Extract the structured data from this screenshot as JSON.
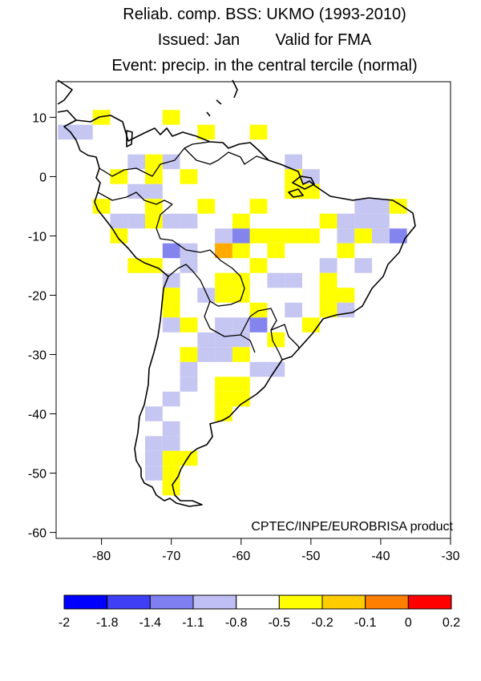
{
  "title": {
    "line1": "Reliab. comp. BSS: UKMO (1993-2010)",
    "line2": "Issued: Jan        Valid for FMA",
    "line3": "Event: precip. in the central tercile (normal)"
  },
  "credit": "CPTEC/INPE/EUROBRISA product",
  "axes": {
    "x_ticks": [
      "-80",
      "-70",
      "-60",
      "-50",
      "-40",
      "-30"
    ],
    "y_ticks": [
      "10",
      "0",
      "-10",
      "-20",
      "-30",
      "-40",
      "-50",
      "-60"
    ],
    "xlim": [
      -86.5,
      -30
    ],
    "ylim": [
      -61,
      16
    ]
  },
  "colorbar": {
    "tick_labels": [
      "-2",
      "-1.8",
      "-1.4",
      "-1.1",
      "-0.8",
      "-0.5",
      "-0.2",
      "-0.1",
      "0",
      "0.2"
    ],
    "colors": [
      "#0000ff",
      "#3f3ff5",
      "#7f7ff2",
      "#bfbff5",
      "#ffffff",
      "#ffff00",
      "#ffcc00",
      "#ff8000",
      "#ff0000"
    ]
  },
  "cell_colors": {
    "b1": "#c6c6f2",
    "b2": "#8484ee",
    "y": "#ffff00",
    "o": "#ffaa00"
  },
  "map_data": {
    "cell_size_deg": 2.5,
    "cells": [
      [
        "y",
        -80,
        10
      ],
      [
        "b1",
        -82.5,
        7.5
      ],
      [
        "b1",
        -85,
        7.5
      ],
      [
        "y",
        -70,
        10
      ],
      [
        "y",
        -57.5,
        7.5
      ],
      [
        "y",
        -65,
        7.5
      ],
      [
        "b1",
        -70,
        2.5
      ],
      [
        "b1",
        -75,
        2.5
      ],
      [
        "y",
        -72.5,
        2.5
      ],
      [
        "y",
        -72.5,
        0
      ],
      [
        "y",
        -77.5,
        0
      ],
      [
        "y",
        -67.5,
        0
      ],
      [
        "b1",
        -52.5,
        2.5
      ],
      [
        "y",
        -52.5,
        0
      ],
      [
        "b1",
        -50,
        0
      ],
      [
        "y",
        -50,
        -2.5
      ],
      [
        "y",
        -52.5,
        -2.5
      ],
      [
        "b1",
        -72.5,
        -2.5
      ],
      [
        "b1",
        -75,
        -2.5
      ],
      [
        "y",
        -80,
        -5
      ],
      [
        "y",
        -72.5,
        -5
      ],
      [
        "y",
        -65,
        -5
      ],
      [
        "y",
        -57.5,
        -5
      ],
      [
        "b1",
        -40,
        -5
      ],
      [
        "y",
        -37.5,
        -5
      ],
      [
        "b1",
        -42.5,
        -5
      ],
      [
        "b1",
        -77.5,
        -7.5
      ],
      [
        "b1",
        -75,
        -7.5
      ],
      [
        "y",
        -72.5,
        -7.5
      ],
      [
        "b1",
        -67.5,
        -7.5
      ],
      [
        "b1",
        -70,
        -7.5
      ],
      [
        "y",
        -60,
        -7.5
      ],
      [
        "y",
        -47.5,
        -7.5
      ],
      [
        "b1",
        -45,
        -7.5
      ],
      [
        "b1",
        -42.5,
        -7.5
      ],
      [
        "b1",
        -40,
        -7.5
      ],
      [
        "y",
        -77.5,
        -10
      ],
      [
        "b2",
        -60,
        -10
      ],
      [
        "y",
        -55,
        -10
      ],
      [
        "y",
        -52.5,
        -10
      ],
      [
        "y",
        -50,
        -10
      ],
      [
        "y",
        -57.5,
        -10
      ],
      [
        "b1",
        -62.5,
        -10
      ],
      [
        "b1",
        -45,
        -10
      ],
      [
        "y",
        -42.5,
        -10
      ],
      [
        "b2",
        -37.5,
        -10
      ],
      [
        "b1",
        -40,
        -10
      ],
      [
        "b2",
        -70,
        -12.5
      ],
      [
        "b1",
        -67.5,
        -12.5
      ],
      [
        "o",
        -62.5,
        -12.5
      ],
      [
        "y",
        -60,
        -12.5
      ],
      [
        "y",
        -55,
        -12.5
      ],
      [
        "y",
        -45,
        -12.5
      ],
      [
        "y",
        -75,
        -15
      ],
      [
        "y",
        -72.5,
        -15
      ],
      [
        "b1",
        -67.5,
        -15
      ],
      [
        "y",
        -57.5,
        -15
      ],
      [
        "b1",
        -47.5,
        -15
      ],
      [
        "b1",
        -42.5,
        -15
      ],
      [
        "y",
        -62.5,
        -17.5
      ],
      [
        "y",
        -60,
        -17.5
      ],
      [
        "b1",
        -55,
        -17.5
      ],
      [
        "b1",
        -52.5,
        -17.5
      ],
      [
        "y",
        -47.5,
        -17.5
      ],
      [
        "b1",
        -70,
        -17.5
      ],
      [
        "y",
        -70,
        -20
      ],
      [
        "y",
        -62.5,
        -20
      ],
      [
        "y",
        -60,
        -20
      ],
      [
        "b1",
        -65,
        -20
      ],
      [
        "y",
        -47.5,
        -20
      ],
      [
        "y",
        -45,
        -20
      ],
      [
        "y",
        -70,
        -22.5
      ],
      [
        "y",
        -57.5,
        -22.5
      ],
      [
        "b1",
        -52.5,
        -22.5
      ],
      [
        "y",
        -47.5,
        -22.5
      ],
      [
        "b1",
        -45,
        -22.5
      ],
      [
        "y",
        -67.5,
        -25
      ],
      [
        "b1",
        -70,
        -25
      ],
      [
        "b1",
        -62.5,
        -25
      ],
      [
        "b1",
        -60,
        -25
      ],
      [
        "b2",
        -57.5,
        -25
      ],
      [
        "y",
        -50,
        -25
      ],
      [
        "b1",
        -65,
        -27.5
      ],
      [
        "b1",
        -62.5,
        -27.5
      ],
      [
        "b1",
        -60,
        -27.5
      ],
      [
        "y",
        -55,
        -27.5
      ],
      [
        "y",
        -67.5,
        -30
      ],
      [
        "b1",
        -65,
        -30
      ],
      [
        "y",
        -60,
        -30
      ],
      [
        "b1",
        -62.5,
        -30
      ],
      [
        "b1",
        -67.5,
        -32.5
      ],
      [
        "b1",
        -57.5,
        -32.5
      ],
      [
        "b1",
        -55,
        -32.5
      ],
      [
        "y",
        -62.5,
        -35
      ],
      [
        "y",
        -60,
        -35
      ],
      [
        "b1",
        -67.5,
        -35
      ],
      [
        "y",
        -62.5,
        -37.5
      ],
      [
        "y",
        -60,
        -37.5
      ],
      [
        "b1",
        -70,
        -37.5
      ],
      [
        "y",
        -62.5,
        -40
      ],
      [
        "b1",
        -72.5,
        -40
      ],
      [
        "b1",
        -70,
        -42.5
      ],
      [
        "b1",
        -72.5,
        -45
      ],
      [
        "b1",
        -70,
        -45
      ],
      [
        "y",
        -70,
        -47.5
      ],
      [
        "y",
        -67.5,
        -47.5
      ],
      [
        "b1",
        -72.5,
        -47.5
      ],
      [
        "y",
        -70,
        -50
      ],
      [
        "b1",
        -72.5,
        -50
      ],
      [
        "y",
        -70,
        -52.5
      ]
    ]
  }
}
